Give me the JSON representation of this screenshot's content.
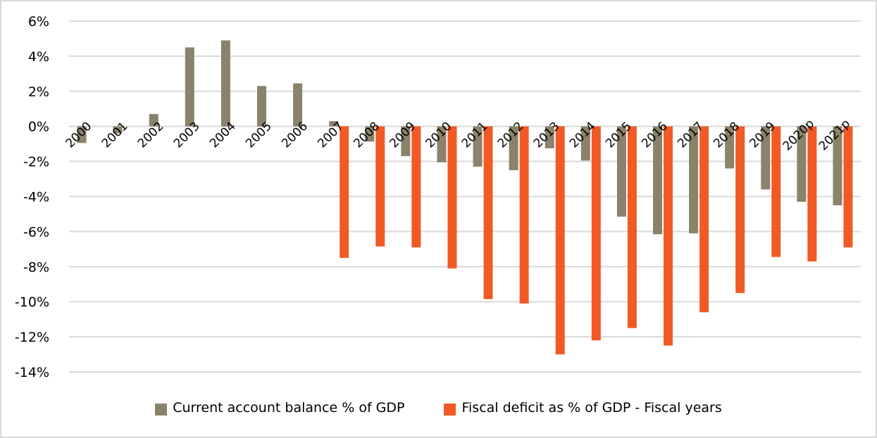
{
  "chart_data": {
    "type": "bar",
    "title": "",
    "xlabel": "",
    "ylabel": "",
    "ylim": [
      -14,
      6
    ],
    "yticks": [
      6,
      4,
      2,
      0,
      -2,
      -4,
      -6,
      -8,
      -10,
      -12,
      -14
    ],
    "ytick_labels": [
      "6%",
      "4%",
      "2%",
      "0%",
      "-2%",
      "-4%",
      "-6%",
      "-8%",
      "-10%",
      "-12%",
      "-14%"
    ],
    "grid": true,
    "legend_position": "bottom",
    "categories": [
      "2000",
      "2001",
      "2002",
      "2003",
      "2004",
      "2005",
      "2006",
      "2007",
      "2008",
      "2009",
      "2010",
      "2011",
      "2012",
      "2013",
      "2014",
      "2015",
      "2016",
      "2017",
      "2018",
      "2019",
      "2020p",
      "2021p"
    ],
    "series": [
      {
        "name": "Current account balance % of GDP",
        "color": "#8b826c",
        "values": [
          -0.95,
          -0.4,
          0.7,
          4.5,
          4.9,
          2.3,
          2.45,
          0.3,
          -0.87,
          -1.7,
          -2.05,
          -2.3,
          -2.5,
          -1.25,
          -1.95,
          -5.15,
          -6.15,
          -6.1,
          -2.4,
          -3.6,
          -4.3,
          -4.5
        ]
      },
      {
        "name": "Fiscal deficit as % of GDP - Fiscal years",
        "color": "#f15a24",
        "values": [
          null,
          null,
          null,
          null,
          null,
          null,
          null,
          -7.5,
          -6.85,
          -6.9,
          -8.1,
          -9.85,
          -10.1,
          -13.0,
          -12.2,
          -11.5,
          -12.5,
          -10.6,
          -9.5,
          -7.45,
          -7.7,
          -6.9
        ]
      }
    ]
  }
}
